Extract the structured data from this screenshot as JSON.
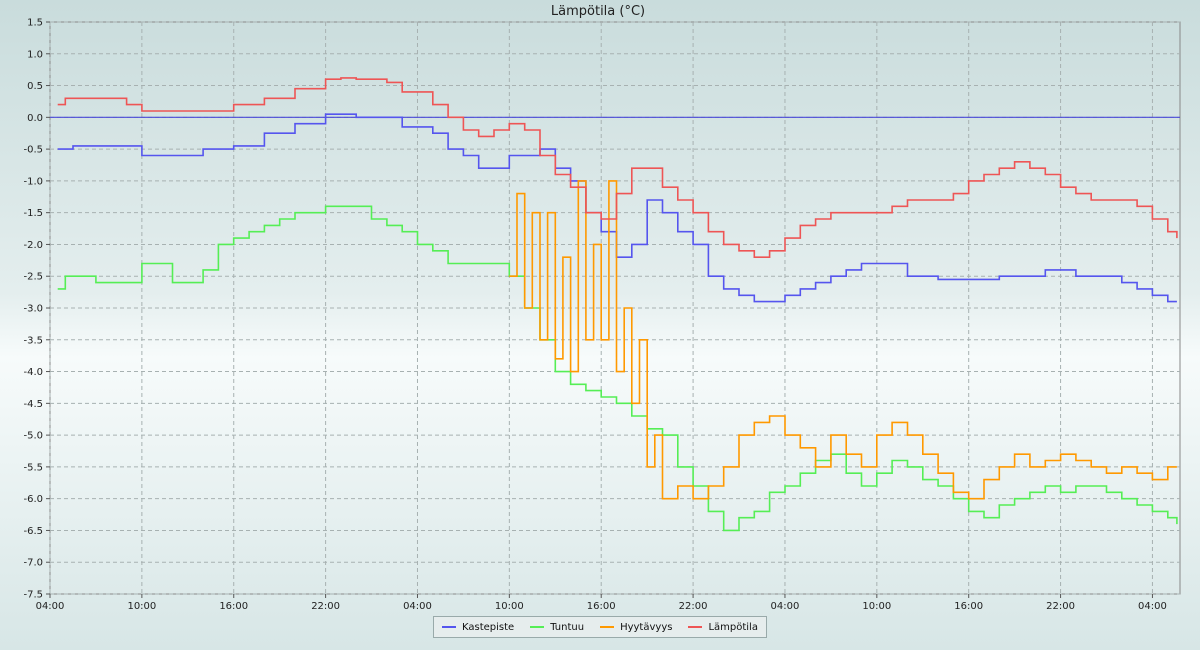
{
  "chart_data": {
    "type": "line",
    "title": "Lämpötila (°C)",
    "x_tick_labels": [
      "04:00",
      "10:00",
      "16:00",
      "22:00",
      "04:00",
      "10:00",
      "16:00",
      "22:00",
      "04:00",
      "10:00",
      "16:00",
      "22:00",
      "04:00"
    ],
    "x_tick_hours": [
      0,
      6,
      12,
      18,
      24,
      30,
      36,
      42,
      48,
      54,
      60,
      66,
      72
    ],
    "xlim_hours": [
      0,
      73.8
    ],
    "ylim": [
      -7.5,
      1.5
    ],
    "y_ticks": [
      1.5,
      1.0,
      0.5,
      0.0,
      -0.5,
      -1.0,
      -1.5,
      -2.0,
      -2.5,
      -3.0,
      -3.5,
      -4.0,
      -4.5,
      -5.0,
      -5.5,
      -6.0,
      -6.5,
      -7.0,
      -7.5
    ],
    "grid": true,
    "legend_position": "bottom-center",
    "series": [
      {
        "name": "Kastepiste",
        "color": "#5555ee",
        "points": [
          [
            0.5,
            -0.5
          ],
          [
            1.5,
            -0.45
          ],
          [
            3,
            -0.45
          ],
          [
            4,
            -0.45
          ],
          [
            5,
            -0.45
          ],
          [
            6,
            -0.6
          ],
          [
            8,
            -0.6
          ],
          [
            10,
            -0.5
          ],
          [
            12,
            -0.45
          ],
          [
            14,
            -0.25
          ],
          [
            16,
            -0.1
          ],
          [
            18,
            0.05
          ],
          [
            19,
            0.05
          ],
          [
            20,
            0.0
          ],
          [
            22,
            0.0
          ],
          [
            23,
            -0.15
          ],
          [
            25,
            -0.25
          ],
          [
            26,
            -0.5
          ],
          [
            27,
            -0.6
          ],
          [
            28,
            -0.8
          ],
          [
            29,
            -0.8
          ],
          [
            30,
            -0.6
          ],
          [
            31,
            -0.6
          ],
          [
            32,
            -0.5
          ],
          [
            33,
            -0.8
          ],
          [
            34,
            -1.0
          ],
          [
            35,
            -1.5
          ],
          [
            36,
            -1.8
          ],
          [
            37,
            -2.2
          ],
          [
            38,
            -2.0
          ],
          [
            39,
            -1.3
          ],
          [
            40,
            -1.5
          ],
          [
            41,
            -1.8
          ],
          [
            42,
            -2.0
          ],
          [
            43,
            -2.5
          ],
          [
            44,
            -2.7
          ],
          [
            45,
            -2.8
          ],
          [
            46,
            -2.9
          ],
          [
            47,
            -2.9
          ],
          [
            48,
            -2.8
          ],
          [
            49,
            -2.7
          ],
          [
            50,
            -2.6
          ],
          [
            51,
            -2.5
          ],
          [
            52,
            -2.4
          ],
          [
            53,
            -2.3
          ],
          [
            55,
            -2.3
          ],
          [
            56,
            -2.5
          ],
          [
            57,
            -2.5
          ],
          [
            58,
            -2.55
          ],
          [
            60,
            -2.55
          ],
          [
            62,
            -2.5
          ],
          [
            63,
            -2.5
          ],
          [
            64,
            -2.5
          ],
          [
            65,
            -2.4
          ],
          [
            66,
            -2.4
          ],
          [
            67,
            -2.5
          ],
          [
            68,
            -2.5
          ],
          [
            69,
            -2.5
          ],
          [
            70,
            -2.6
          ],
          [
            71,
            -2.7
          ],
          [
            72,
            -2.8
          ],
          [
            73,
            -2.9
          ],
          [
            73.6,
            -2.9
          ]
        ]
      },
      {
        "name": "Tuntuu",
        "color": "#55ee55",
        "points": [
          [
            0.5,
            -2.7
          ],
          [
            1,
            -2.5
          ],
          [
            2,
            -2.5
          ],
          [
            3,
            -2.6
          ],
          [
            4,
            -2.6
          ],
          [
            5,
            -2.6
          ],
          [
            6,
            -2.3
          ],
          [
            7,
            -2.3
          ],
          [
            8,
            -2.6
          ],
          [
            9,
            -2.6
          ],
          [
            10,
            -2.4
          ],
          [
            11,
            -2.0
          ],
          [
            12,
            -1.9
          ],
          [
            13,
            -1.8
          ],
          [
            14,
            -1.7
          ],
          [
            15,
            -1.6
          ],
          [
            16,
            -1.5
          ],
          [
            17,
            -1.5
          ],
          [
            18,
            -1.4
          ],
          [
            19,
            -1.4
          ],
          [
            20,
            -1.4
          ],
          [
            21,
            -1.6
          ],
          [
            22,
            -1.7
          ],
          [
            23,
            -1.8
          ],
          [
            24,
            -2.0
          ],
          [
            25,
            -2.1
          ],
          [
            26,
            -2.3
          ],
          [
            27,
            -2.3
          ],
          [
            28,
            -2.3
          ],
          [
            29,
            -2.3
          ],
          [
            30,
            -2.5
          ],
          [
            31,
            -3.0
          ],
          [
            32,
            -3.5
          ],
          [
            33,
            -4.0
          ],
          [
            34,
            -4.2
          ],
          [
            35,
            -4.3
          ],
          [
            36,
            -4.4
          ],
          [
            37,
            -4.5
          ],
          [
            38,
            -4.7
          ],
          [
            39,
            -4.9
          ],
          [
            40,
            -5.0
          ],
          [
            41,
            -5.5
          ],
          [
            42,
            -5.8
          ],
          [
            43,
            -6.2
          ],
          [
            44,
            -6.5
          ],
          [
            45,
            -6.3
          ],
          [
            46,
            -6.2
          ],
          [
            47,
            -5.9
          ],
          [
            48,
            -5.8
          ],
          [
            49,
            -5.6
          ],
          [
            50,
            -5.4
          ],
          [
            51,
            -5.3
          ],
          [
            52,
            -5.6
          ],
          [
            53,
            -5.8
          ],
          [
            54,
            -5.6
          ],
          [
            55,
            -5.4
          ],
          [
            56,
            -5.5
          ],
          [
            57,
            -5.7
          ],
          [
            58,
            -5.8
          ],
          [
            59,
            -6.0
          ],
          [
            60,
            -6.2
          ],
          [
            61,
            -6.3
          ],
          [
            62,
            -6.1
          ],
          [
            63,
            -6.0
          ],
          [
            64,
            -5.9
          ],
          [
            65,
            -5.8
          ],
          [
            66,
            -5.9
          ],
          [
            67,
            -5.8
          ],
          [
            68,
            -5.8
          ],
          [
            69,
            -5.9
          ],
          [
            70,
            -6.0
          ],
          [
            71,
            -6.1
          ],
          [
            72,
            -6.2
          ],
          [
            73,
            -6.3
          ],
          [
            73.6,
            -6.4
          ]
        ]
      },
      {
        "name": "Hyytävyys",
        "color": "#ff9900",
        "points": [
          [
            30,
            -2.5
          ],
          [
            30.5,
            -1.2
          ],
          [
            31,
            -3.0
          ],
          [
            31.5,
            -1.5
          ],
          [
            32,
            -3.5
          ],
          [
            32.5,
            -1.5
          ],
          [
            33,
            -3.8
          ],
          [
            33.5,
            -2.2
          ],
          [
            34,
            -4.0
          ],
          [
            34.5,
            -1.0
          ],
          [
            35,
            -3.5
          ],
          [
            35.5,
            -2.0
          ],
          [
            36,
            -3.5
          ],
          [
            36.5,
            -1.0
          ],
          [
            37,
            -4.0
          ],
          [
            37.5,
            -3.0
          ],
          [
            38,
            -4.5
          ],
          [
            38.5,
            -3.5
          ],
          [
            39,
            -5.5
          ],
          [
            39.5,
            -5.0
          ],
          [
            40,
            -6.0
          ],
          [
            41,
            -5.8
          ],
          [
            42,
            -6.0
          ],
          [
            43,
            -5.8
          ],
          [
            44,
            -5.5
          ],
          [
            45,
            -5.0
          ],
          [
            46,
            -4.8
          ],
          [
            47,
            -4.7
          ],
          [
            48,
            -5.0
          ],
          [
            49,
            -5.2
          ],
          [
            50,
            -5.5
          ],
          [
            51,
            -5.0
          ],
          [
            52,
            -5.3
          ],
          [
            53,
            -5.5
          ],
          [
            54,
            -5.0
          ],
          [
            55,
            -4.8
          ],
          [
            56,
            -5.0
          ],
          [
            57,
            -5.3
          ],
          [
            58,
            -5.6
          ],
          [
            59,
            -5.9
          ],
          [
            60,
            -6.0
          ],
          [
            61,
            -5.7
          ],
          [
            62,
            -5.5
          ],
          [
            63,
            -5.3
          ],
          [
            64,
            -5.5
          ],
          [
            65,
            -5.4
          ],
          [
            66,
            -5.3
          ],
          [
            67,
            -5.4
          ],
          [
            68,
            -5.5
          ],
          [
            69,
            -5.6
          ],
          [
            70,
            -5.5
          ],
          [
            71,
            -5.6
          ],
          [
            72,
            -5.7
          ],
          [
            73,
            -5.5
          ],
          [
            73.6,
            -5.5
          ]
        ]
      },
      {
        "name": "Lämpötila",
        "color": "#ee5555",
        "points": [
          [
            0.5,
            0.2
          ],
          [
            1,
            0.3
          ],
          [
            2,
            0.3
          ],
          [
            3,
            0.3
          ],
          [
            4,
            0.3
          ],
          [
            5,
            0.2
          ],
          [
            6,
            0.1
          ],
          [
            8,
            0.1
          ],
          [
            10,
            0.1
          ],
          [
            12,
            0.2
          ],
          [
            14,
            0.3
          ],
          [
            16,
            0.45
          ],
          [
            18,
            0.6
          ],
          [
            19,
            0.62
          ],
          [
            20,
            0.6
          ],
          [
            22,
            0.55
          ],
          [
            23,
            0.4
          ],
          [
            25,
            0.2
          ],
          [
            26,
            0.0
          ],
          [
            27,
            -0.2
          ],
          [
            28,
            -0.3
          ],
          [
            29,
            -0.2
          ],
          [
            30,
            -0.1
          ],
          [
            31,
            -0.2
          ],
          [
            32,
            -0.6
          ],
          [
            33,
            -0.9
          ],
          [
            34,
            -1.1
          ],
          [
            35,
            -1.5
          ],
          [
            36,
            -1.6
          ],
          [
            37,
            -1.2
          ],
          [
            38,
            -0.8
          ],
          [
            39,
            -0.8
          ],
          [
            40,
            -1.1
          ],
          [
            41,
            -1.3
          ],
          [
            42,
            -1.5
          ],
          [
            43,
            -1.8
          ],
          [
            44,
            -2.0
          ],
          [
            45,
            -2.1
          ],
          [
            46,
            -2.2
          ],
          [
            47,
            -2.1
          ],
          [
            48,
            -1.9
          ],
          [
            49,
            -1.7
          ],
          [
            50,
            -1.6
          ],
          [
            51,
            -1.5
          ],
          [
            52,
            -1.5
          ],
          [
            53,
            -1.5
          ],
          [
            54,
            -1.5
          ],
          [
            55,
            -1.4
          ],
          [
            56,
            -1.3
          ],
          [
            57,
            -1.3
          ],
          [
            58,
            -1.3
          ],
          [
            59,
            -1.2
          ],
          [
            60,
            -1.0
          ],
          [
            61,
            -0.9
          ],
          [
            62,
            -0.8
          ],
          [
            63,
            -0.7
          ],
          [
            64,
            -0.8
          ],
          [
            65,
            -0.9
          ],
          [
            66,
            -1.1
          ],
          [
            67,
            -1.2
          ],
          [
            68,
            -1.3
          ],
          [
            69,
            -1.3
          ],
          [
            70,
            -1.3
          ],
          [
            71,
            -1.4
          ],
          [
            72,
            -1.6
          ],
          [
            73,
            -1.8
          ],
          [
            73.6,
            -1.9
          ]
        ]
      }
    ]
  }
}
